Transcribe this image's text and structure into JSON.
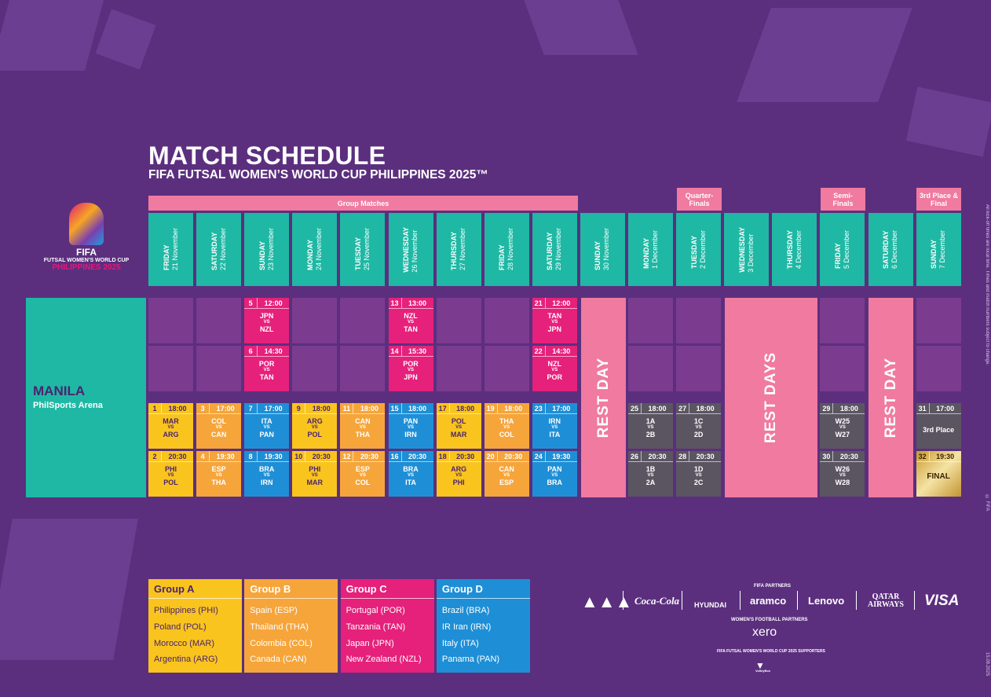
{
  "header": {
    "title": "MATCH SCHEDULE",
    "subtitle": "FIFA FUTSAL WOMEN’S WORLD CUP PHILIPPINES 2025™"
  },
  "logo": {
    "l1": "FIFA",
    "l2": "FUTSAL WOMEN'S WORLD CUP",
    "l3": "PHILIPPINES 2025"
  },
  "stages": {
    "group": "Group Matches",
    "quarter": "Quarter-\nFinals",
    "semi": "Semi-\nFinals",
    "final": "3rd Place &\nFinal"
  },
  "days": [
    {
      "day": "FRIDAY",
      "date": "21 November"
    },
    {
      "day": "SATURDAY",
      "date": "22 November"
    },
    {
      "day": "SUNDAY",
      "date": "23 November"
    },
    {
      "day": "MONDAY",
      "date": "24 November"
    },
    {
      "day": "TUESDAY",
      "date": "25 November"
    },
    {
      "day": "WEDNESDAY",
      "date": "26 November"
    },
    {
      "day": "THURSDAY",
      "date": "27 November"
    },
    {
      "day": "FRIDAY",
      "date": "28 November"
    },
    {
      "day": "SATURDAY",
      "date": "29 November"
    },
    {
      "day": "SUNDAY",
      "date": "30 November"
    },
    {
      "day": "MONDAY",
      "date": "1 December"
    },
    {
      "day": "TUESDAY",
      "date": "2 December"
    },
    {
      "day": "WEDNESDAY",
      "date": "3 December"
    },
    {
      "day": "THURSDAY",
      "date": "4 December"
    },
    {
      "day": "FRIDAY",
      "date": "5 December"
    },
    {
      "day": "SATURDAY",
      "date": "6 December"
    },
    {
      "day": "SUNDAY",
      "date": "7 December"
    }
  ],
  "venue": {
    "city": "MANILA",
    "arena": "PhilSports Arena"
  },
  "rest": {
    "day": "REST DAY",
    "days": "REST DAYS"
  },
  "vs": "VS",
  "matches": [
    {
      "no": "5",
      "time": "12:00",
      "home": "JPN",
      "away": "NZL",
      "group": "C",
      "col": 2,
      "row": 0
    },
    {
      "no": "6",
      "time": "14:30",
      "home": "POR",
      "away": "TAN",
      "group": "C",
      "col": 2,
      "row": 1
    },
    {
      "no": "13",
      "time": "13:00",
      "home": "NZL",
      "away": "TAN",
      "group": "C",
      "col": 5,
      "row": 0
    },
    {
      "no": "14",
      "time": "15:30",
      "home": "POR",
      "away": "JPN",
      "group": "C",
      "col": 5,
      "row": 1
    },
    {
      "no": "21",
      "time": "12:00",
      "home": "TAN",
      "away": "JPN",
      "group": "C",
      "col": 8,
      "row": 0
    },
    {
      "no": "22",
      "time": "14:30",
      "home": "NZL",
      "away": "POR",
      "group": "C",
      "col": 8,
      "row": 1
    },
    {
      "no": "1",
      "time": "18:00",
      "home": "MAR",
      "away": "ARG",
      "group": "A",
      "col": 0,
      "row": 2
    },
    {
      "no": "2",
      "time": "20:30",
      "home": "PHI",
      "away": "POL",
      "group": "A",
      "col": 0,
      "row": 3
    },
    {
      "no": "3",
      "time": "17:00",
      "home": "COL",
      "away": "CAN",
      "group": "B",
      "col": 1,
      "row": 2
    },
    {
      "no": "4",
      "time": "19:30",
      "home": "ESP",
      "away": "THA",
      "group": "B",
      "col": 1,
      "row": 3
    },
    {
      "no": "7",
      "time": "17:00",
      "home": "ITA",
      "away": "PAN",
      "group": "D",
      "col": 2,
      "row": 2
    },
    {
      "no": "8",
      "time": "19:30",
      "home": "BRA",
      "away": "IRN",
      "group": "D",
      "col": 2,
      "row": 3
    },
    {
      "no": "9",
      "time": "18:00",
      "home": "ARG",
      "away": "POL",
      "group": "A",
      "col": 3,
      "row": 2
    },
    {
      "no": "10",
      "time": "20:30",
      "home": "PHI",
      "away": "MAR",
      "group": "A",
      "col": 3,
      "row": 3
    },
    {
      "no": "11",
      "time": "18:00",
      "home": "CAN",
      "away": "THA",
      "group": "B",
      "col": 4,
      "row": 2
    },
    {
      "no": "12",
      "time": "20:30",
      "home": "ESP",
      "away": "COL",
      "group": "B",
      "col": 4,
      "row": 3
    },
    {
      "no": "15",
      "time": "18:00",
      "home": "PAN",
      "away": "IRN",
      "group": "D",
      "col": 5,
      "row": 2
    },
    {
      "no": "16",
      "time": "20:30",
      "home": "BRA",
      "away": "ITA",
      "group": "D",
      "col": 5,
      "row": 3
    },
    {
      "no": "17",
      "time": "18:00",
      "home": "POL",
      "away": "MAR",
      "group": "A",
      "col": 6,
      "row": 2
    },
    {
      "no": "18",
      "time": "20:30",
      "home": "ARG",
      "away": "PHI",
      "group": "A",
      "col": 6,
      "row": 3
    },
    {
      "no": "19",
      "time": "18:00",
      "home": "THA",
      "away": "COL",
      "group": "B",
      "col": 7,
      "row": 2
    },
    {
      "no": "20",
      "time": "20:30",
      "home": "CAN",
      "away": "ESP",
      "group": "B",
      "col": 7,
      "row": 3
    },
    {
      "no": "23",
      "time": "17:00",
      "home": "IRN",
      "away": "ITA",
      "group": "D",
      "col": 8,
      "row": 2
    },
    {
      "no": "24",
      "time": "19:30",
      "home": "PAN",
      "away": "BRA",
      "group": "D",
      "col": 8,
      "row": 3
    },
    {
      "no": "25",
      "time": "18:00",
      "home": "1A",
      "away": "2B",
      "group": "K",
      "col": 10,
      "row": 2
    },
    {
      "no": "26",
      "time": "20:30",
      "home": "1B",
      "away": "2A",
      "group": "K",
      "col": 10,
      "row": 3
    },
    {
      "no": "27",
      "time": "18:00",
      "home": "1C",
      "away": "2D",
      "group": "K",
      "col": 11,
      "row": 2
    },
    {
      "no": "28",
      "time": "20:30",
      "home": "1D",
      "away": "2C",
      "group": "K",
      "col": 11,
      "row": 3
    },
    {
      "no": "29",
      "time": "18:00",
      "home": "W25",
      "away": "W27",
      "group": "K",
      "col": 14,
      "row": 2
    },
    {
      "no": "30",
      "time": "20:30",
      "home": "W26",
      "away": "W28",
      "group": "K",
      "col": 14,
      "row": 3
    },
    {
      "no": "31",
      "time": "17:00",
      "label": "3rd Place",
      "group": "K",
      "col": 16,
      "row": 2
    },
    {
      "no": "32",
      "time": "19:30",
      "label": "FINAL",
      "group": "F",
      "col": 16,
      "row": 3
    }
  ],
  "groups": [
    {
      "name": "Group A",
      "teams": [
        "Philippines (PHI)",
        "Poland (POL)",
        "Morocco (MAR)",
        "Argentina (ARG)"
      ]
    },
    {
      "name": "Group B",
      "teams": [
        "Spain (ESP)",
        "Thailand (THA)",
        "Colombia (COL)",
        "Canada (CAN)"
      ]
    },
    {
      "name": "Group C",
      "teams": [
        "Portugal (POR)",
        "Tanzania (TAN)",
        "Japan (JPN)",
        "New Zealand (NZL)"
      ]
    },
    {
      "name": "Group D",
      "teams": [
        "Brazil (BRA)",
        "IR Iran (IRN)",
        "Italy (ITA)",
        "Panama (PAN)"
      ]
    }
  ],
  "sponsors": {
    "partners_label": "FIFA PARTNERS",
    "partners": [
      "adidas",
      "Coca-Cola",
      "HYUNDAI",
      "aramco",
      "Lenovo",
      "QATAR AIRWAYS",
      "VISA"
    ],
    "womens_label": "WOMEN'S FOOTBALL PARTNERS",
    "womens": "xero",
    "supporters_label": "FIFA FUTSAL WOMEN'S WORLD CUP 2025 SUPPORTERS",
    "supporter": "VolleyBox"
  },
  "side_notes": {
    "copyright": "© FIFA",
    "note": "All kick-off times are local time. Times and match numbers subject to change.",
    "date": "15.09.2025"
  },
  "colors": {
    "background": "#5b2f7e",
    "teal": "#1fb8a4",
    "pink": "#f07aa0",
    "groupA": "#f9c41e",
    "groupB": "#f6a53a",
    "groupC": "#e5217b",
    "groupD": "#1e8fd6",
    "knockout": "#5b5561"
  }
}
